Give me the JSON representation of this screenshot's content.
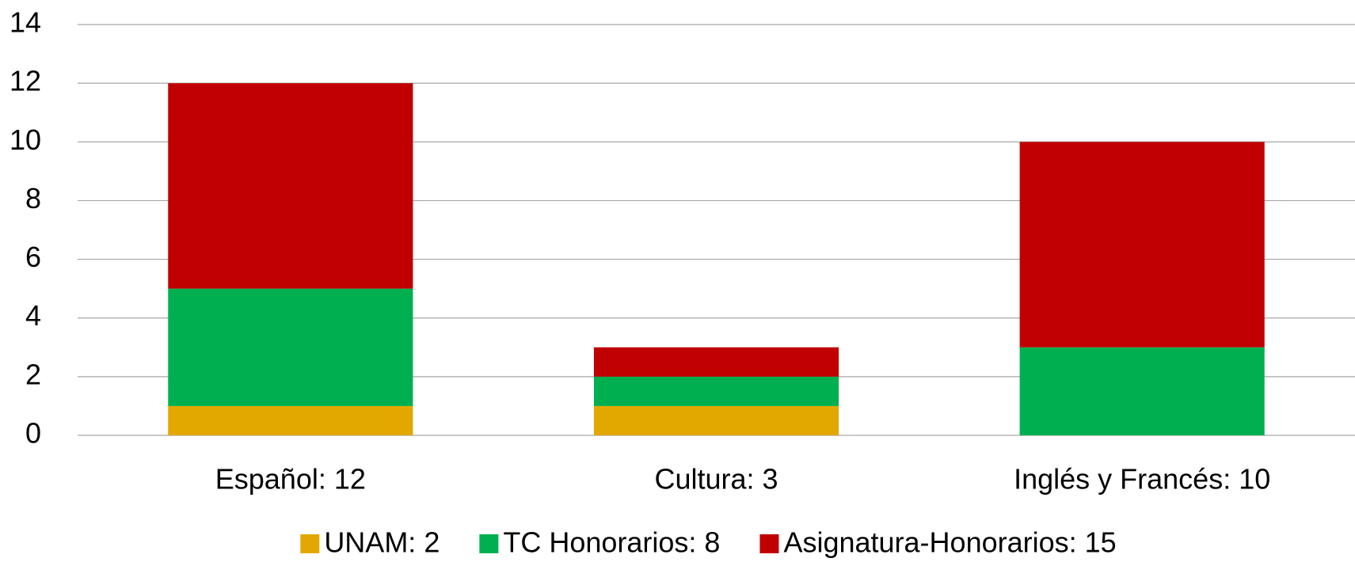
{
  "chart_data": {
    "type": "bar",
    "stacked": true,
    "categories": [
      "Español: 12",
      "Cultura: 3",
      "Inglés y Francés: 10"
    ],
    "series": [
      {
        "name": "UNAM: 2",
        "color": "#e3a800",
        "values": [
          1,
          1,
          0
        ]
      },
      {
        "name": "TC Honorarios: 8",
        "color": "#00b050",
        "values": [
          4,
          1,
          3
        ]
      },
      {
        "name": "Asignatura-Honorarios: 15",
        "color": "#c00000",
        "values": [
          7,
          1,
          7
        ]
      }
    ],
    "ylim": [
      0,
      14
    ],
    "yticks": [
      0,
      2,
      4,
      6,
      8,
      10,
      12,
      14
    ],
    "grid": true,
    "legend": "bottom"
  }
}
